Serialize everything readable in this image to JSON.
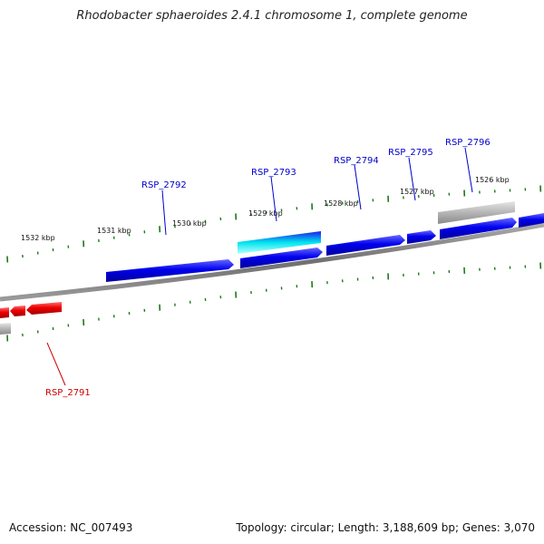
{
  "title": "Rhodobacter sphaeroides 2.4.1 chromosome 1, complete genome",
  "footer": {
    "accession": "Accession: NC_007493",
    "summary": "Topology: circular; Length: 3,188,609 bp; Genes: 3,070"
  },
  "colors": {
    "forward_gene": "#0000ee",
    "reverse_gene": "#ee0000",
    "highlight": "#00e5ee",
    "pseudo_gene": "#b0b0b0",
    "backbone": "#808080",
    "tick": "#1a7a1a",
    "forward_label": "#0000cc",
    "reverse_label": "#cc0000"
  },
  "scale_labels": [
    "1532 kbp",
    "1531 kbp",
    "1530 kbp",
    "1529 kbp",
    "1528 kbp",
    "1527 kbp",
    "1526 kbp"
  ],
  "gene_labels": [
    {
      "text": "RSP_2792",
      "strand": "forward"
    },
    {
      "text": "RSP_2793",
      "strand": "forward"
    },
    {
      "text": "RSP_2794",
      "strand": "forward"
    },
    {
      "text": "RSP_2795",
      "strand": "forward"
    },
    {
      "text": "RSP_2796",
      "strand": "forward"
    },
    {
      "text": "RSP_2791",
      "strand": "reverse"
    }
  ]
}
